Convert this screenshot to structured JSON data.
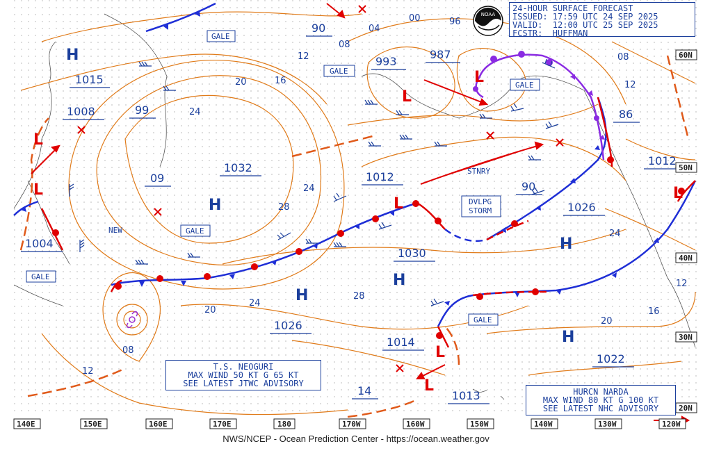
{
  "header": {
    "line1": "24-HOUR SURFACE FORECAST",
    "line2": "ISSUED: 17:59 UTC 24 SEP 2025",
    "line3": "VALID:  12:00 UTC 25 SEP 2025",
    "line4": "FCSTR:  HUFFMAN"
  },
  "footer": "NWS/NCEP - Ocean Prediction Center - https://ocean.weather.gov",
  "logo_text": "NOAA",
  "colors": {
    "isobar": "#e07b1a",
    "label": "#1b3f9c",
    "high": "#1b3f9c",
    "low": "#e00000",
    "cold_front": "#1f2fd6",
    "warm_front": "#e00000",
    "occluded": "#8a2be2",
    "grid": "#8c8c8c"
  },
  "advisories": {
    "neoguri": [
      "T.S. NEOGURI",
      "MAX WIND 50 KT G 65 KT",
      "SEE LATEST JTWC ADVISORY"
    ],
    "narda": [
      "HURCN NARDA",
      "MAX WIND 80 KT G 100 KT",
      "SEE LATEST NHC ADVISORY"
    ]
  },
  "pressure_centers": [
    {
      "type": "H",
      "value": "1015"
    },
    {
      "type": "L",
      "value": "1008"
    },
    {
      "type": "L",
      "value": "1004"
    },
    {
      "type": "H",
      "value": "1032"
    },
    {
      "type": "H",
      "value": "1030"
    },
    {
      "type": "H",
      "value": "1026"
    },
    {
      "type": "H",
      "value": "1026"
    },
    {
      "type": "H",
      "value": "1022"
    },
    {
      "type": "L",
      "value": "993"
    },
    {
      "type": "L",
      "value": "987"
    },
    {
      "type": "L",
      "value": "1012"
    },
    {
      "type": "L",
      "value": "1014"
    },
    {
      "type": "L",
      "value": "1013"
    },
    {
      "type": "L",
      "value": "1012"
    }
  ],
  "labels": {
    "gale": "GALE",
    "stnry": "STNRY",
    "dvlpg1": "DVLPG",
    "dvlpg2": "STORM",
    "new": "NEW",
    "high_letter": "H",
    "low_letter": "L"
  },
  "underlined_values": [
    "90",
    "99",
    "09",
    "90",
    "86",
    "14"
  ],
  "isobar_labels": [
    "12",
    "20",
    "16",
    "24",
    "24",
    "28",
    "28",
    "24",
    "20",
    "12",
    "08",
    "00",
    "04",
    "08",
    "96",
    "08",
    "12",
    "24",
    "20",
    "16",
    "12"
  ],
  "lon_labels": [
    "140E",
    "150E",
    "160E",
    "170E",
    "180",
    "170W",
    "160W",
    "150W",
    "140W",
    "130W",
    "120W"
  ],
  "lat_labels": [
    "60N",
    "50N",
    "40N",
    "30N",
    "20N"
  ]
}
